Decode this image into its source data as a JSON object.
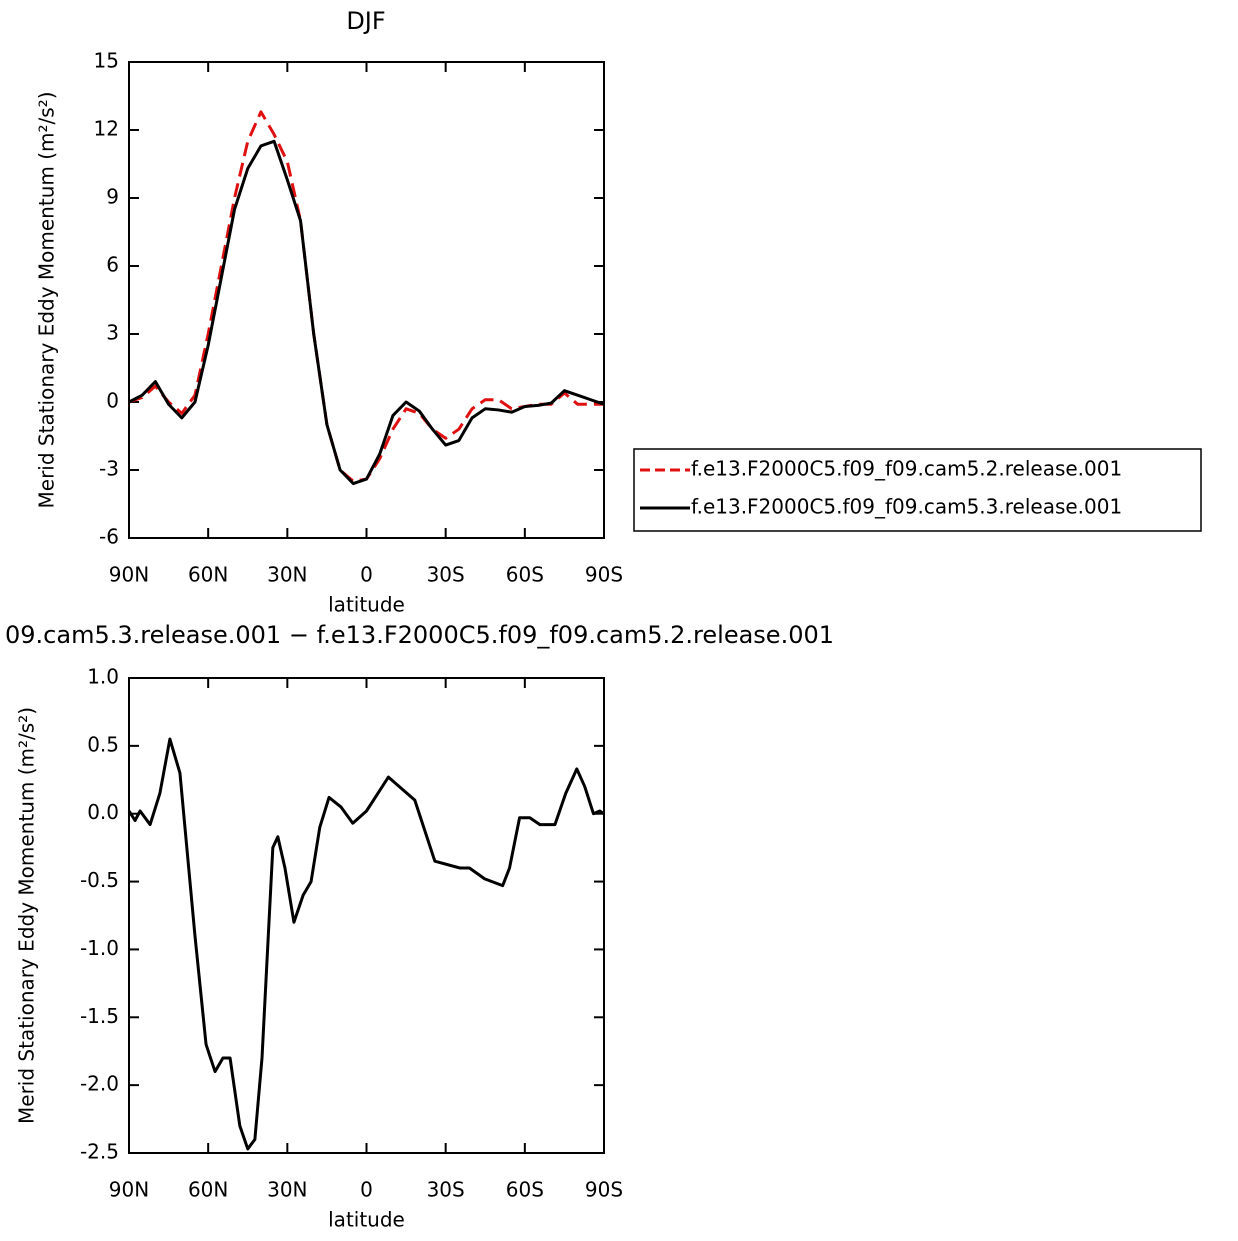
{
  "chart_data": [
    {
      "type": "line",
      "title": "DJF",
      "xlabel": "latitude",
      "ylabel": "Merid Stationary Eddy Momentum (m²/s²)",
      "x": [
        90,
        85,
        80,
        75,
        70,
        65,
        60,
        55,
        50,
        45,
        40,
        35,
        30,
        25,
        20,
        15,
        10,
        5,
        0,
        -5,
        -10,
        -15,
        -20,
        -25,
        -30,
        -35,
        -40,
        -45,
        -50,
        -55,
        -60,
        -65,
        -70,
        -75,
        -80,
        -85,
        -90
      ],
      "series": [
        {
          "name": "f.e13.F2000C5.f09_f09.cam5.2.release.001",
          "color": "#e01010",
          "dash": true,
          "values": [
            0,
            0.2,
            0.7,
            0,
            -0.5,
            0.3,
            3,
            6,
            9,
            11.5,
            12.8,
            11.8,
            10.6,
            8,
            3,
            -1,
            -3,
            -3.5,
            -3.4,
            -2.5,
            -1.2,
            -0.3,
            -0.5,
            -1.2,
            -1.6,
            -1.2,
            -0.3,
            0.1,
            0.1,
            -0.3,
            -0.2,
            -0.1,
            -0.1,
            0.4,
            -0.1,
            -0.1,
            -0.1
          ]
        },
        {
          "name": "f.e13.F2000C5.f09_f09.cam5.3.release.001",
          "color": "#000000",
          "dash": false,
          "values": [
            0,
            0.3,
            0.9,
            -0.1,
            -0.7,
            0,
            2.5,
            5.5,
            8.5,
            10.3,
            11.3,
            11.5,
            9.8,
            8,
            3,
            -1,
            -3,
            -3.6,
            -3.4,
            -2.3,
            -0.6,
            0,
            -0.4,
            -1.2,
            -1.9,
            -1.7,
            -0.7,
            -0.3,
            -0.35,
            -0.45,
            -0.2,
            -0.15,
            -0.05,
            0.5,
            0.3,
            0.1,
            -0.1
          ]
        }
      ],
      "xlim": [
        90,
        -90
      ],
      "xticks": [
        {
          "value": 90,
          "label": "90N"
        },
        {
          "value": 60,
          "label": "60N"
        },
        {
          "value": 30,
          "label": "30N"
        },
        0,
        {
          "value": -30,
          "label": "30S"
        },
        {
          "value": -60,
          "label": "60S"
        },
        {
          "value": -90,
          "label": "90S"
        }
      ],
      "ylim": [
        -6,
        15
      ],
      "yticks": [
        -6,
        -3,
        0,
        3,
        6,
        9,
        12,
        15
      ]
    },
    {
      "type": "line",
      "title": "09.cam5.3.release.001 − f.e13.F2000C5.f09_f09.cam5.2.release.001",
      "xlabel": "latitude",
      "ylabel": "Merid Stationary Eddy Momentum (m²/s²)",
      "x": [
        90,
        87.7,
        85.8,
        82,
        78.3,
        74.5,
        70.7,
        65,
        60.8,
        57.4,
        54.4,
        51.7,
        48,
        45,
        42.3,
        39.6,
        35.5,
        33.6,
        30.9,
        27.5,
        24,
        21,
        17.7,
        14.2,
        9.7,
        5.2,
        0,
        -8.3,
        -18.3,
        -25.9,
        -35.4,
        -39,
        -44.8,
        -51.6,
        -54.2,
        -58,
        -61.9,
        -65.7,
        -71.4,
        -75.5,
        -79.7,
        -82.7,
        -86,
        -88.4,
        -90
      ],
      "color": "#000000",
      "values": [
        0.02,
        -0.05,
        0.02,
        -0.08,
        0.15,
        0.55,
        0.3,
        -0.9,
        -1.7,
        -1.9,
        -1.8,
        -1.8,
        -2.3,
        -2.47,
        -2.4,
        -1.8,
        -0.25,
        -0.17,
        -0.4,
        -0.8,
        -0.6,
        -0.5,
        -0.1,
        0.12,
        0.05,
        -0.07,
        0.02,
        0.27,
        0.1,
        -0.35,
        -0.4,
        -0.4,
        -0.48,
        -0.53,
        -0.4,
        -0.03,
        -0.03,
        -0.08,
        -0.08,
        0.15,
        0.33,
        0.2,
        0,
        0.02,
        0
      ],
      "xlim": [
        90,
        -90
      ],
      "xticks": [
        {
          "value": 90,
          "label": "90N"
        },
        {
          "value": 60,
          "label": "60N"
        },
        {
          "value": 30,
          "label": "30N"
        },
        0,
        {
          "value": -30,
          "label": "30S"
        },
        {
          "value": -60,
          "label": "60S"
        },
        {
          "value": -90,
          "label": "90S"
        }
      ],
      "ylim": [
        -2.5,
        1
      ],
      "yticks": [
        {
          "value": -2.5,
          "label": "-2.5"
        },
        {
          "value": -2,
          "label": "-2.0"
        },
        -1.5,
        {
          "value": -1,
          "label": "-1.0"
        },
        -0.5,
        {
          "value": 0,
          "label": "0.0"
        },
        0.5,
        {
          "value": 1,
          "label": "1.0"
        }
      ]
    }
  ]
}
